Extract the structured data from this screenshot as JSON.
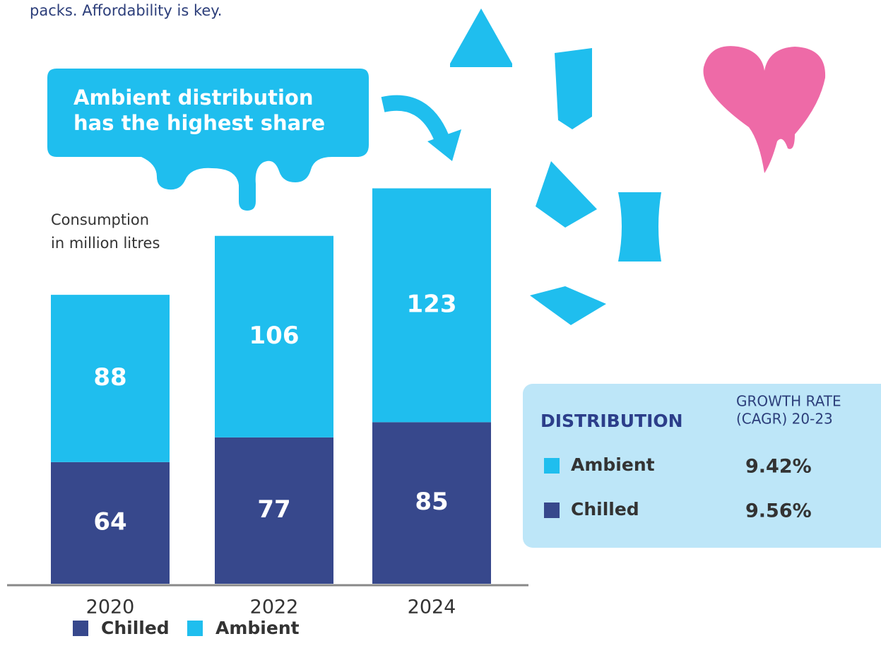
{
  "intro": "packs. Affordability is key.",
  "callout": [
    "Ambient distribution",
    "has the highest share"
  ],
  "chart_data": {
    "type": "stacked-bar",
    "ylabel": [
      "Consumption",
      "in million litres"
    ],
    "categories": [
      "2020",
      "2022",
      "2024"
    ],
    "series": [
      {
        "name": "Chilled",
        "color": "#37488c",
        "values": [
          64,
          77,
          85
        ]
      },
      {
        "name": "Ambient",
        "color": "#1fbeee",
        "values": [
          88,
          106,
          123
        ]
      }
    ]
  },
  "distribution": {
    "title": "DISTRIBUTION",
    "growth_header": [
      "GROWTH RATE",
      "(CAGR) 20-23"
    ],
    "rows": [
      {
        "name": "Ambient",
        "color": "#1fbeee",
        "rate": "9.42%"
      },
      {
        "name": "Chilled",
        "color": "#37488c",
        "rate": "9.56%"
      }
    ]
  }
}
